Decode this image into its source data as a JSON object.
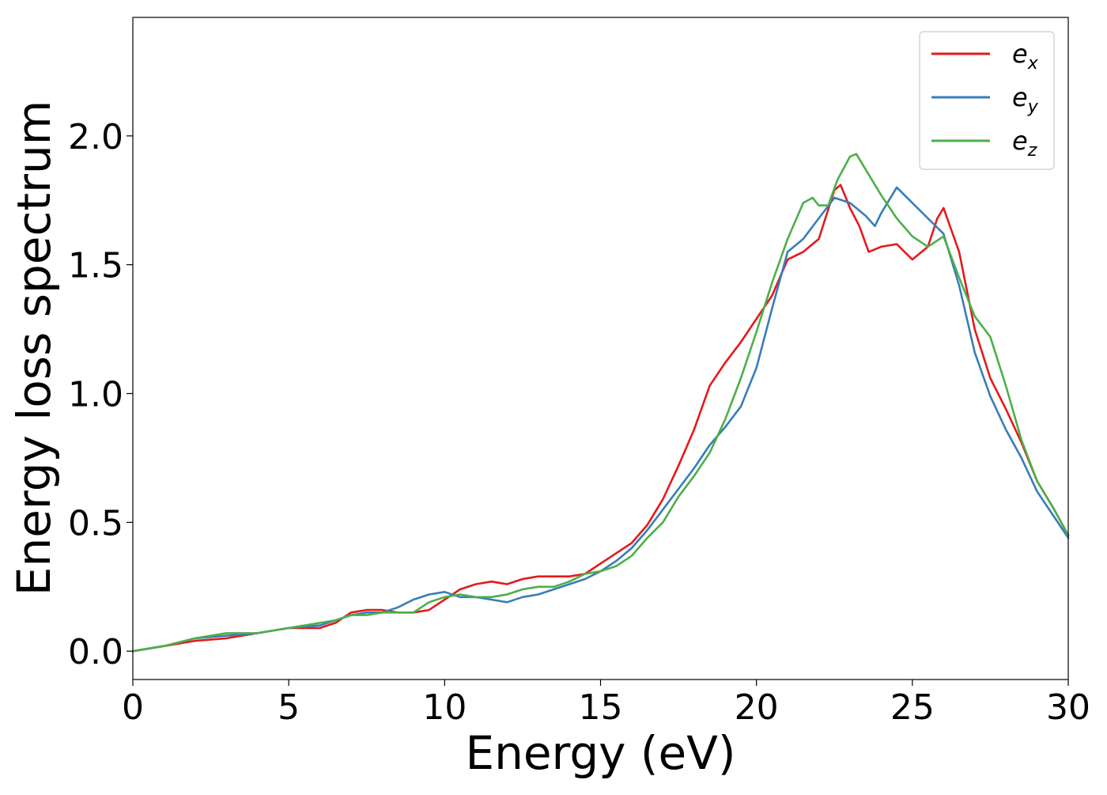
{
  "chart_data": {
    "type": "line",
    "title": "",
    "xlabel": "Energy (eV)",
    "ylabel": "Energy loss spectrum",
    "xlim": [
      0,
      30
    ],
    "ylim": [
      -0.11,
      2.46
    ],
    "xticks": [
      0,
      5,
      10,
      15,
      20,
      25,
      30
    ],
    "yticks": [
      0.0,
      0.5,
      1.0,
      1.5,
      2.0
    ],
    "xtick_labels": [
      "0",
      "5",
      "10",
      "15",
      "20",
      "25",
      "30"
    ],
    "ytick_labels": [
      "0.0",
      "0.5",
      "1.0",
      "1.5",
      "2.0"
    ],
    "grid": false,
    "legend_position": "top-right",
    "series": [
      {
        "name": "e_x",
        "label_base": "e",
        "label_sub": "x",
        "color": "#e41a1c",
        "x": [
          0,
          1,
          2,
          3,
          4,
          5,
          6,
          6.5,
          7,
          7.5,
          8,
          8.5,
          9,
          9.5,
          10,
          10.5,
          11,
          11.5,
          12,
          12.5,
          13,
          13.5,
          14,
          14.5,
          15,
          15.5,
          16,
          16.5,
          17,
          17.5,
          18,
          18.5,
          19,
          19.5,
          20,
          20.5,
          21,
          21.5,
          22,
          22.5,
          22.7,
          23,
          23.3,
          23.6,
          24,
          24.5,
          25,
          25.5,
          25.8,
          26,
          26.5,
          27,
          27.5,
          28,
          28.5,
          29,
          29.5,
          30
        ],
        "y": [
          0.0,
          0.02,
          0.04,
          0.05,
          0.07,
          0.09,
          0.09,
          0.11,
          0.15,
          0.16,
          0.16,
          0.15,
          0.15,
          0.16,
          0.2,
          0.24,
          0.26,
          0.27,
          0.26,
          0.28,
          0.29,
          0.29,
          0.29,
          0.3,
          0.34,
          0.38,
          0.42,
          0.49,
          0.59,
          0.72,
          0.86,
          1.03,
          1.12,
          1.2,
          1.29,
          1.38,
          1.52,
          1.55,
          1.6,
          1.79,
          1.81,
          1.72,
          1.65,
          1.55,
          1.57,
          1.58,
          1.52,
          1.57,
          1.68,
          1.72,
          1.55,
          1.25,
          1.06,
          0.94,
          0.81,
          0.66,
          0.56,
          0.45
        ]
      },
      {
        "name": "e_y",
        "label_base": "e",
        "label_sub": "y",
        "color": "#377eb8",
        "x": [
          0,
          1,
          2,
          3,
          4,
          5,
          6,
          6.5,
          7,
          7.5,
          8,
          8.5,
          9,
          9.5,
          10,
          10.5,
          11,
          11.5,
          12,
          12.5,
          13,
          13.5,
          14,
          14.5,
          15,
          15.5,
          16,
          16.5,
          17,
          17.5,
          18,
          18.5,
          19,
          19.5,
          20,
          20.5,
          21,
          21.5,
          22,
          22.5,
          23,
          23.5,
          23.8,
          24,
          24.5,
          25,
          25.5,
          26,
          26.5,
          27,
          27.5,
          28,
          28.5,
          29,
          29.5,
          30
        ],
        "y": [
          0.0,
          0.02,
          0.05,
          0.06,
          0.07,
          0.09,
          0.1,
          0.12,
          0.14,
          0.15,
          0.15,
          0.17,
          0.2,
          0.22,
          0.23,
          0.21,
          0.21,
          0.2,
          0.19,
          0.21,
          0.22,
          0.24,
          0.26,
          0.28,
          0.31,
          0.35,
          0.4,
          0.47,
          0.55,
          0.63,
          0.71,
          0.8,
          0.87,
          0.95,
          1.1,
          1.33,
          1.55,
          1.6,
          1.68,
          1.76,
          1.74,
          1.69,
          1.65,
          1.7,
          1.8,
          1.74,
          1.68,
          1.62,
          1.42,
          1.16,
          0.99,
          0.86,
          0.75,
          0.62,
          0.53,
          0.44
        ]
      },
      {
        "name": "e_z",
        "label_base": "e",
        "label_sub": "z",
        "color": "#4daf4a",
        "x": [
          0,
          1,
          2,
          3,
          4,
          5,
          5.5,
          6,
          6.5,
          7,
          7.5,
          8,
          8.5,
          9,
          9.5,
          10,
          10.5,
          11,
          11.5,
          12,
          12.5,
          13,
          13.5,
          14,
          14.5,
          15,
          15.5,
          16,
          16.5,
          17,
          17.5,
          18,
          18.5,
          19,
          19.5,
          20,
          20.5,
          21,
          21.5,
          21.8,
          22,
          22.3,
          22.6,
          23,
          23.2,
          23.5,
          24,
          24.5,
          25,
          25.5,
          26,
          26.5,
          27,
          27.5,
          28,
          28.5,
          29,
          29.5,
          30
        ],
        "y": [
          0.0,
          0.02,
          0.05,
          0.07,
          0.07,
          0.09,
          0.1,
          0.11,
          0.12,
          0.14,
          0.14,
          0.15,
          0.15,
          0.15,
          0.19,
          0.21,
          0.22,
          0.21,
          0.21,
          0.22,
          0.24,
          0.25,
          0.25,
          0.27,
          0.3,
          0.31,
          0.33,
          0.37,
          0.44,
          0.5,
          0.6,
          0.68,
          0.77,
          0.9,
          1.06,
          1.24,
          1.43,
          1.6,
          1.74,
          1.76,
          1.73,
          1.73,
          1.83,
          1.92,
          1.93,
          1.87,
          1.77,
          1.68,
          1.61,
          1.57,
          1.61,
          1.45,
          1.3,
          1.22,
          1.03,
          0.82,
          0.66,
          0.56,
          0.45
        ]
      }
    ]
  }
}
